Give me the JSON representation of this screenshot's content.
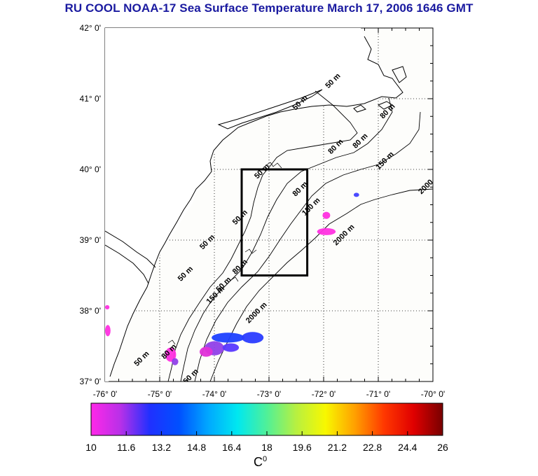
{
  "title": "RU COOL  NOAA-17 Sea Surface Temperature March 17, 2006 1646 GMT",
  "map": {
    "lon_range": [
      -76,
      -70
    ],
    "lat_range": [
      37,
      42
    ],
    "lat_ticks": [
      "42° 0'",
      "41° 0'",
      "40° 0'",
      "39° 0'",
      "38° 0'",
      "37° 0'"
    ],
    "lon_ticks": [
      "-76° 0'",
      "-75° 0'",
      "-74° 0'",
      "-73° 0'",
      "-72° 0'",
      "-71° 0'",
      "-70° 0'"
    ],
    "grid": "dotted",
    "study_box": {
      "lon": [
        -73.5,
        -72.3
      ],
      "lat": [
        38.5,
        40.0
      ]
    },
    "contour_labels": [
      {
        "text": "50 m",
        "lon": -71.8,
        "lat": 41.23
      },
      {
        "text": "50 m",
        "lon": -72.4,
        "lat": 40.92
      },
      {
        "text": "80 m",
        "lon": -70.8,
        "lat": 40.8
      },
      {
        "text": "80 m",
        "lon": -71.3,
        "lat": 40.38
      },
      {
        "text": "80 m",
        "lon": -71.75,
        "lat": 40.3
      },
      {
        "text": "150 m",
        "lon": -70.85,
        "lat": 40.1
      },
      {
        "text": "2000",
        "lon": -70.1,
        "lat": 39.73
      },
      {
        "text": "50 m",
        "lon": -73.1,
        "lat": 39.95
      },
      {
        "text": "80 m",
        "lon": -72.4,
        "lat": 39.7
      },
      {
        "text": "150 m",
        "lon": -72.2,
        "lat": 39.45
      },
      {
        "text": "50 m",
        "lon": -73.5,
        "lat": 39.3
      },
      {
        "text": "2000 m",
        "lon": -71.6,
        "lat": 39.05
      },
      {
        "text": "50 m",
        "lon": -74.1,
        "lat": 38.95
      },
      {
        "text": "80 m",
        "lon": -73.5,
        "lat": 38.6
      },
      {
        "text": "50 m",
        "lon": -74.5,
        "lat": 38.5
      },
      {
        "text": "50 m",
        "lon": -73.8,
        "lat": 38.35
      },
      {
        "text": "150 m",
        "lon": -73.95,
        "lat": 38.2
      },
      {
        "text": "2000 m",
        "lon": -73.2,
        "lat": 37.95
      },
      {
        "text": "50 m",
        "lon": -75.3,
        "lat": 37.3
      },
      {
        "text": "80 m",
        "lon": -74.8,
        "lat": 37.4
      },
      {
        "text": "50 m",
        "lon": -74.4,
        "lat": 37.05
      }
    ],
    "sst_patches": [
      {
        "lon": -73.75,
        "lat": 37.62,
        "rx": 0.3,
        "ry": 0.07,
        "color": "#1e40ff"
      },
      {
        "lon": -73.3,
        "lat": 37.62,
        "rx": 0.2,
        "ry": 0.08,
        "color": "#2a3cff"
      },
      {
        "lon": -74.0,
        "lat": 37.47,
        "rx": 0.18,
        "ry": 0.1,
        "color": "#9040e8"
      },
      {
        "lon": -73.7,
        "lat": 37.48,
        "rx": 0.15,
        "ry": 0.06,
        "color": "#5838ff"
      },
      {
        "lon": -74.15,
        "lat": 37.42,
        "rx": 0.12,
        "ry": 0.07,
        "color": "#e030d8"
      },
      {
        "lon": -74.8,
        "lat": 37.38,
        "rx": 0.1,
        "ry": 0.1,
        "color": "#ff30e0"
      },
      {
        "lon": -74.72,
        "lat": 37.28,
        "rx": 0.06,
        "ry": 0.05,
        "color": "#9040e8"
      },
      {
        "lon": -75.95,
        "lat": 37.72,
        "rx": 0.05,
        "ry": 0.08,
        "color": "#ff30e0"
      },
      {
        "lon": -75.96,
        "lat": 38.05,
        "rx": 0.04,
        "ry": 0.03,
        "color": "#ff30e0"
      },
      {
        "lon": -71.95,
        "lat": 39.12,
        "rx": 0.17,
        "ry": 0.05,
        "color": "#ff30e0"
      },
      {
        "lon": -71.95,
        "lat": 39.35,
        "rx": 0.07,
        "ry": 0.05,
        "color": "#ff30e0"
      },
      {
        "lon": -71.4,
        "lat": 39.64,
        "rx": 0.05,
        "ry": 0.03,
        "color": "#4040ff"
      }
    ]
  },
  "colorbar": {
    "min": 10,
    "max": 26,
    "ticks": [
      "10",
      "11.6",
      "13.2",
      "14.8",
      "16.4",
      "18",
      "19.6",
      "21.2",
      "22.8",
      "24.4",
      "26"
    ],
    "stops": [
      "#ff28e8",
      "#b830e8",
      "#2030ff",
      "#0050ff",
      "#00a8ff",
      "#00e8f0",
      "#50f098",
      "#b8f040",
      "#f8f800",
      "#ffa000",
      "#ff3800",
      "#e00000",
      "#780000"
    ],
    "label": "C",
    "label_sup": "0"
  }
}
